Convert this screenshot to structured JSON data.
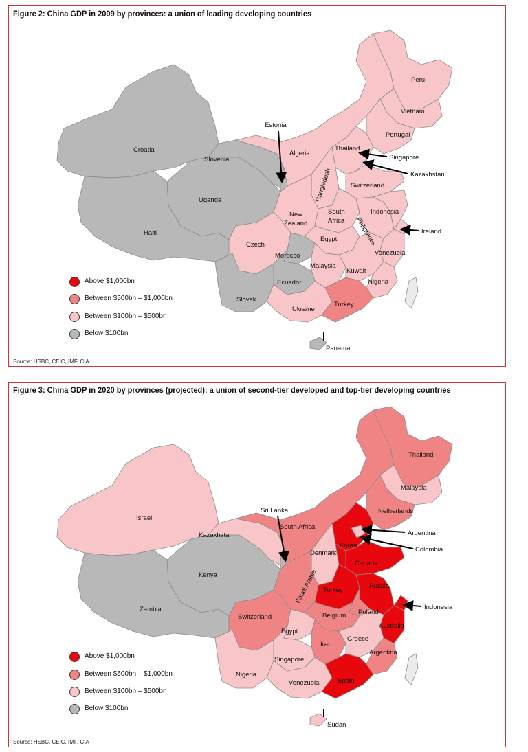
{
  "figure2": {
    "title": "Figure 2: China GDP in 2009 by provinces: a union of leading developing countries",
    "source": "Source: HSBC, CEIC, IMF, CIA",
    "legend": [
      {
        "label": "Above $1,000bn",
        "color": "#e8070d"
      },
      {
        "label": "Between $500bn – $1,000bn",
        "color": "#f08484"
      },
      {
        "label": "Between $100bn – $500bn",
        "color": "#f8c6c8"
      },
      {
        "label": "Below $100bn",
        "color": "#b8b8b8"
      }
    ],
    "labels": {
      "peru": "Peru",
      "vietnam": "Vietnam",
      "portugal": "Portugal",
      "estonia": "Estonia",
      "croatia": "Croatia",
      "algeria": "Algeria",
      "thailand": "Thailand",
      "singapore": "Singapore",
      "slovenia": "Slovenia",
      "kazakhstan": "Kazakhstan",
      "bangladesh": "Bangladesh",
      "switzerland": "Switzerland",
      "uganda": "Uganda",
      "indonesia": "Indonesia",
      "new_zealand_1": "New",
      "new_zealand_2": "Zealand",
      "south_africa_1": "South",
      "south_africa_2": "Africa",
      "philippines": "Philippines",
      "haiti": "Haiti",
      "ireland": "Ireland",
      "egypt": "Egypt",
      "czech": "Czech",
      "venezuela": "Venezuela",
      "morocco": "Morocco",
      "malaysia": "Malaysia",
      "kuwait": "Kuwait",
      "ecuador": "Ecuador",
      "nigeria": "Nigeria",
      "slovak": "Slovak",
      "turkey": "Turkey",
      "ukraine": "Ukraine",
      "panama": "Panama"
    }
  },
  "figure3": {
    "title": "Figure 3: China GDP in 2020 by provinces (projected): a union of second-tier developed and top-tier developing countries",
    "source": "Source: HSBC, CEIC, IMF, CIA",
    "legend": [
      {
        "label": "Above $1,000bn",
        "color": "#e8070d"
      },
      {
        "label": "Between $500bn – $1,000bn",
        "color": "#f08484"
      },
      {
        "label": "Between $100bn – $500bn",
        "color": "#f8c6c8"
      },
      {
        "label": "Below $100bn",
        "color": "#b8b8b8"
      }
    ],
    "labels": {
      "thailand": "Thailand",
      "malaysia": "Malaysia",
      "sri_lanka": "Sri Lanka",
      "netherlands": "Netherlands",
      "israel": "Israel",
      "south_africa": "South Africa",
      "argentina_n": "Argentina",
      "kazakhstan": "Kazakhstan",
      "colombia": "Colombia",
      "denmark": "Denmark",
      "korea": "Korea",
      "kenya": "Kenya",
      "canada": "Canada",
      "saudi_arabia": "Saudi Arabia",
      "russia": "Russia",
      "turkey": "Turkey",
      "indonesia": "Indonesia",
      "zambia": "Zambia",
      "poland": "Poland",
      "belgium": "Belgium",
      "switzerland": "Switzerland",
      "australia": "Australia",
      "egypt": "Egypt",
      "iran": "Iran",
      "greece": "Greece",
      "argentina_s": "Argentina",
      "singapore": "Singapore",
      "nigeria": "Nigeria",
      "venezuela": "Venezuela",
      "spain": "Spain",
      "sudan": "Sudan"
    }
  }
}
